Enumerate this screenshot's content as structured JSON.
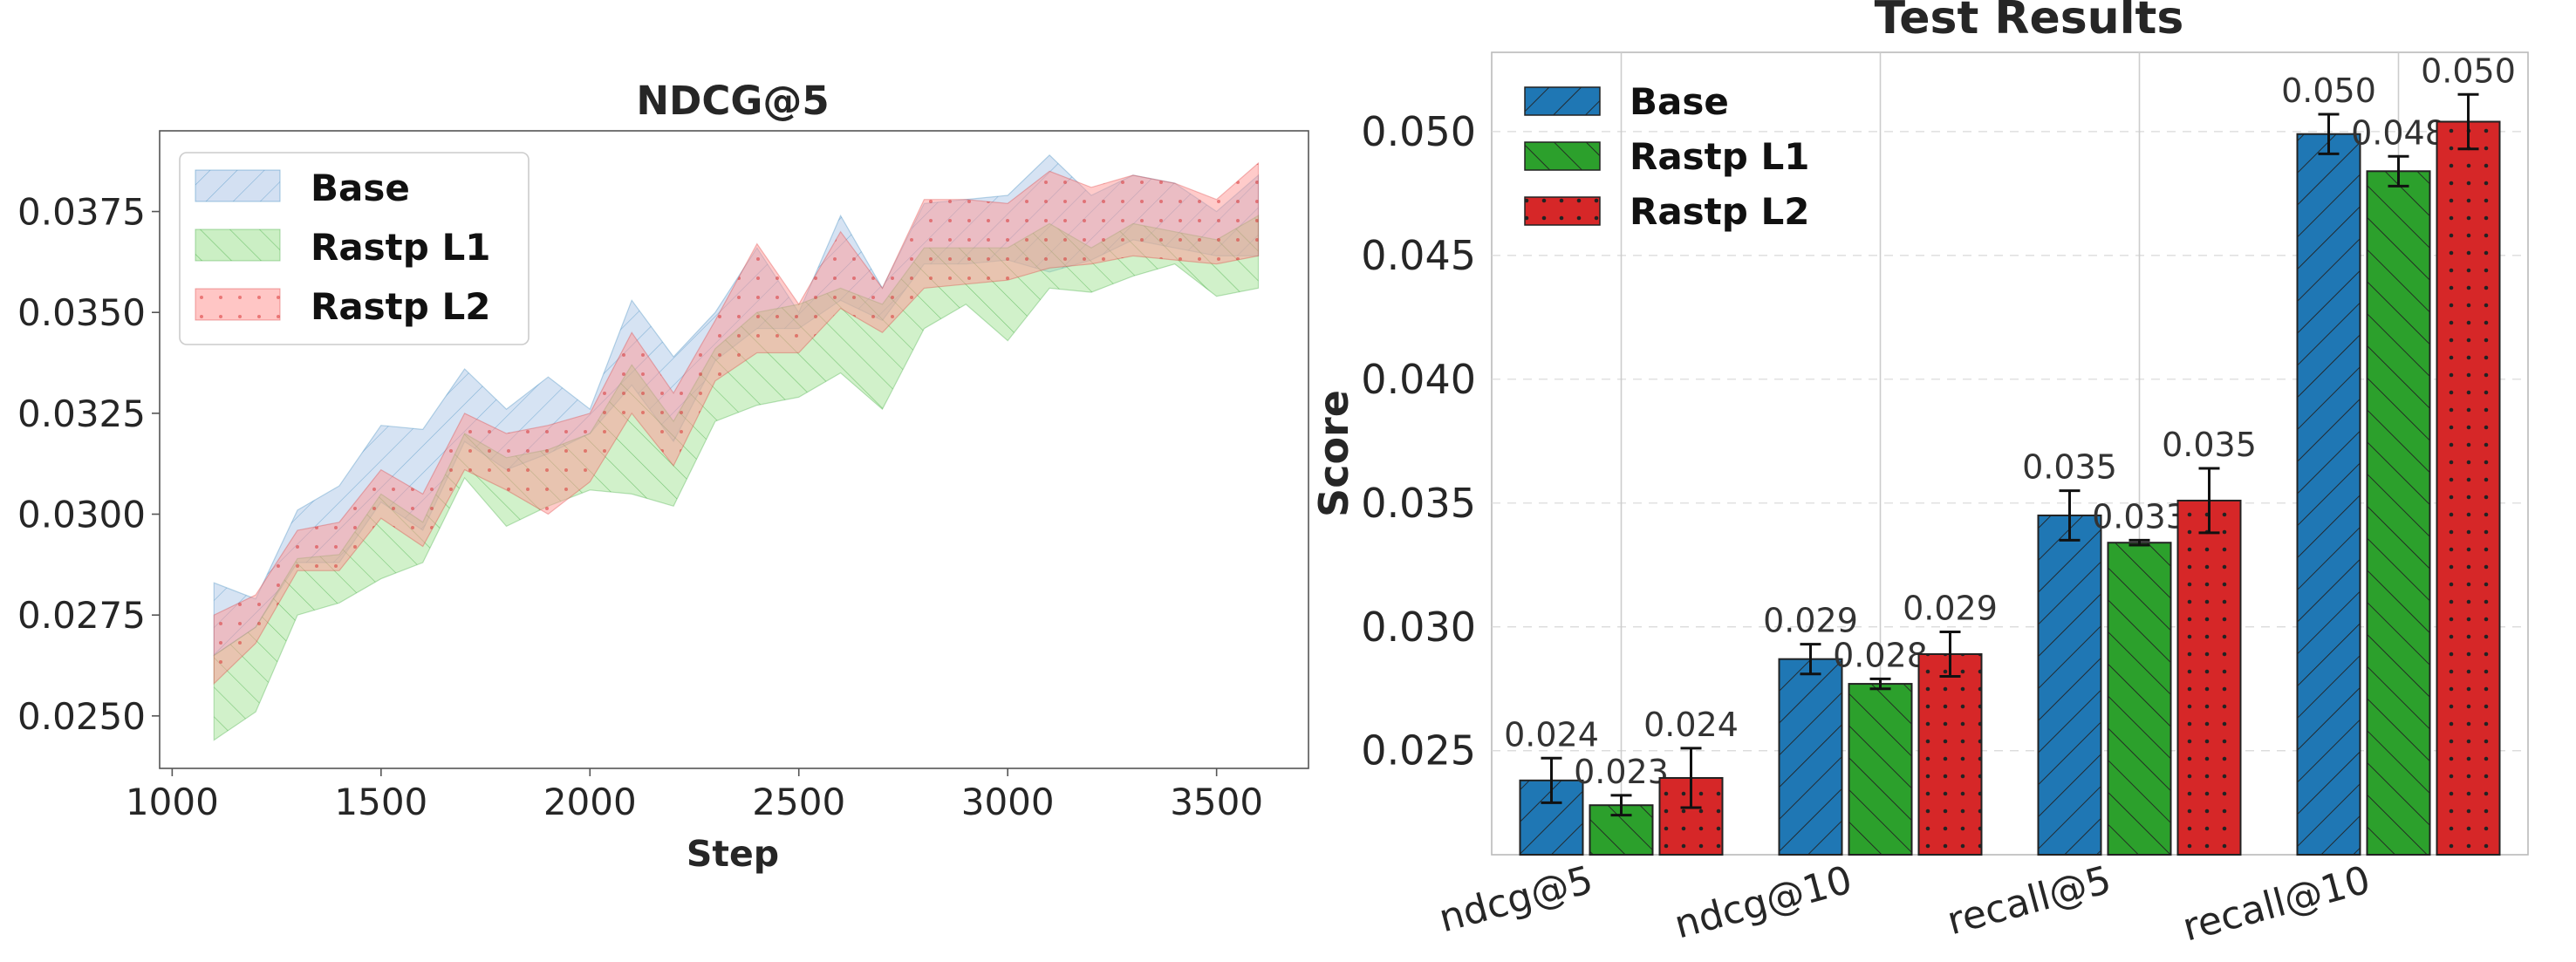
{
  "colors": {
    "base": "#1f77b4",
    "rastp_l1": "#2ca02c",
    "rastp_l2": "#d62728",
    "base_band_fill": "#aec7e8",
    "rastp_l1_band_fill": "#98df8a",
    "rastp_l2_band_fill": "#ff9896"
  },
  "chart_data": [
    {
      "type": "area",
      "title": "NDCG@5",
      "xlabel": "Step",
      "ylabel": "",
      "xlim": [
        970,
        3720
      ],
      "ylim": [
        0.0237,
        0.0395
      ],
      "xticks": [
        1000,
        1500,
        2000,
        2500,
        3000,
        3500
      ],
      "xtick_labels": [
        "1000",
        "1500",
        "2000",
        "2500",
        "3000",
        "3500"
      ],
      "yticks": [
        0.025,
        0.0275,
        0.03,
        0.0325,
        0.035,
        0.0375
      ],
      "ytick_labels": [
        "0.0250",
        "0.0275",
        "0.0300",
        "0.0325",
        "0.0350",
        "0.0375"
      ],
      "legend": {
        "position": "top-left",
        "labels": [
          "Base",
          "Rastp L1",
          "Rastp L2"
        ]
      },
      "x": [
        1100,
        1200,
        1300,
        1400,
        1500,
        1600,
        1700,
        1800,
        1900,
        2000,
        2100,
        2200,
        2300,
        2400,
        2500,
        2600,
        2700,
        2800,
        2900,
        3000,
        3100,
        3200,
        3300,
        3400,
        3500,
        3600
      ],
      "series": [
        {
          "name": "Base",
          "upper": [
            0.0283,
            0.0279,
            0.0301,
            0.0307,
            0.0322,
            0.0321,
            0.0336,
            0.0326,
            0.0334,
            0.0326,
            0.0353,
            0.0339,
            0.035,
            0.0366,
            0.035,
            0.0374,
            0.0356,
            0.0377,
            0.0378,
            0.0379,
            0.0389,
            0.0379,
            0.0384,
            0.0382,
            0.0375,
            0.0384
          ],
          "lower": [
            0.0265,
            0.0272,
            0.0288,
            0.0288,
            0.0303,
            0.0296,
            0.0318,
            0.0311,
            0.0315,
            0.032,
            0.0332,
            0.0318,
            0.0338,
            0.0346,
            0.0346,
            0.0353,
            0.0348,
            0.0362,
            0.0362,
            0.0363,
            0.036,
            0.0363,
            0.0368,
            0.0366,
            0.0364,
            0.0364
          ]
        },
        {
          "name": "Rastp L1",
          "upper": [
            0.0265,
            0.0272,
            0.0289,
            0.029,
            0.0305,
            0.0298,
            0.032,
            0.0314,
            0.0316,
            0.032,
            0.0337,
            0.0323,
            0.0341,
            0.035,
            0.0352,
            0.0356,
            0.0352,
            0.0366,
            0.0366,
            0.0366,
            0.0372,
            0.0366,
            0.0372,
            0.037,
            0.0368,
            0.0374
          ],
          "lower": [
            0.0244,
            0.0251,
            0.0275,
            0.0278,
            0.0284,
            0.0288,
            0.0309,
            0.0297,
            0.0302,
            0.0306,
            0.0305,
            0.0302,
            0.0323,
            0.0327,
            0.0329,
            0.0335,
            0.0326,
            0.0346,
            0.0352,
            0.0343,
            0.0356,
            0.0355,
            0.0359,
            0.0362,
            0.0354,
            0.0356
          ]
        },
        {
          "name": "Rastp L2",
          "upper": [
            0.0275,
            0.028,
            0.0296,
            0.0298,
            0.0311,
            0.0305,
            0.0325,
            0.032,
            0.0322,
            0.0325,
            0.0345,
            0.033,
            0.0348,
            0.0367,
            0.0352,
            0.037,
            0.0356,
            0.0378,
            0.0378,
            0.0377,
            0.0385,
            0.0381,
            0.0384,
            0.0382,
            0.0378,
            0.0387
          ],
          "lower": [
            0.0258,
            0.0268,
            0.0286,
            0.0286,
            0.0299,
            0.0292,
            0.0311,
            0.0306,
            0.03,
            0.0308,
            0.0325,
            0.0312,
            0.0333,
            0.034,
            0.034,
            0.0351,
            0.0345,
            0.0356,
            0.0357,
            0.0358,
            0.0361,
            0.0362,
            0.0364,
            0.0363,
            0.0362,
            0.0364
          ]
        }
      ]
    },
    {
      "type": "bar",
      "title": "Test Results",
      "xlabel": "",
      "ylabel": "Score",
      "ylim": [
        0.0208,
        0.0532
      ],
      "yticks": [
        0.025,
        0.03,
        0.035,
        0.04,
        0.045,
        0.05
      ],
      "ytick_labels": [
        "0.025",
        "0.030",
        "0.035",
        "0.040",
        "0.045",
        "0.050"
      ],
      "categories": [
        "ndcg@5",
        "ndcg@10",
        "recall@5",
        "recall@10"
      ],
      "legend": {
        "position": "top-left",
        "labels": [
          "Base",
          "Rastp L1",
          "Rastp L2"
        ]
      },
      "series": [
        {
          "name": "Base",
          "values": [
            0.0238,
            0.0287,
            0.0345,
            0.0499
          ],
          "errors": [
            0.0009,
            0.0006,
            0.001,
            0.0008
          ],
          "value_labels": [
            "0.024",
            "0.029",
            "0.035",
            "0.050"
          ]
        },
        {
          "name": "Rastp L1",
          "values": [
            0.0228,
            0.0277,
            0.0334,
            0.0484
          ],
          "errors": [
            0.0004,
            0.0002,
            0.0001,
            0.0006
          ],
          "value_labels": [
            "0.023",
            "0.028",
            "0.033",
            "0.048"
          ]
        },
        {
          "name": "Rastp L2",
          "values": [
            0.0239,
            0.0289,
            0.0351,
            0.0504
          ],
          "errors": [
            0.0012,
            0.0009,
            0.0013,
            0.0011
          ],
          "value_labels": [
            "0.024",
            "0.029",
            "0.035",
            "0.050"
          ]
        }
      ]
    }
  ]
}
